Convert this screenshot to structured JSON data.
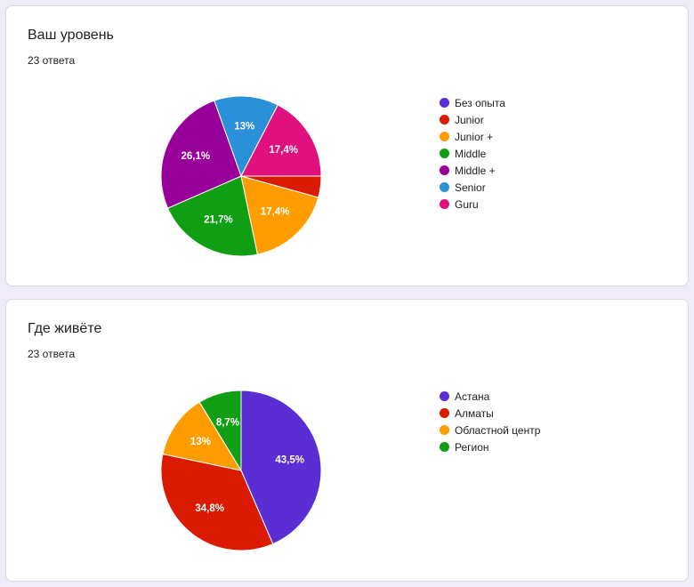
{
  "chart_data": [
    {
      "type": "pie",
      "title": "Ваш уровень",
      "subtitle": "23 ответа",
      "slices": [
        {
          "label": "Без опыта",
          "value": 0,
          "percent_label": "",
          "color": "#5b2ed4"
        },
        {
          "label": "Junior",
          "value": 4.3,
          "percent_label": "",
          "color": "#db1a02"
        },
        {
          "label": "Junior +",
          "value": 17.4,
          "percent_label": "17,4%",
          "color": "#ff9d00"
        },
        {
          "label": "Middle",
          "value": 21.7,
          "percent_label": "21,7%",
          "color": "#0f9e14"
        },
        {
          "label": "Middle +",
          "value": 26.1,
          "percent_label": "26,1%",
          "color": "#990099"
        },
        {
          "label": "Senior",
          "value": 13.0,
          "percent_label": "13%",
          "color": "#2a90d8"
        },
        {
          "label": "Guru",
          "value": 17.4,
          "percent_label": "17,4%",
          "color": "#e0117f"
        }
      ],
      "start_angle_deg": 90,
      "direction": "clockwise",
      "legend_position": "right"
    },
    {
      "type": "pie",
      "title": "Где живёте",
      "subtitle": "23 ответа",
      "slices": [
        {
          "label": "Астана",
          "value": 43.5,
          "percent_label": "43,5%",
          "color": "#5b2ed4"
        },
        {
          "label": "Алматы",
          "value": 34.8,
          "percent_label": "34,8%",
          "color": "#db1a02"
        },
        {
          "label": "Областной центр",
          "value": 13.0,
          "percent_label": "13%",
          "color": "#ff9d00"
        },
        {
          "label": "Регион",
          "value": 8.7,
          "percent_label": "8,7%",
          "color": "#0f9e14"
        }
      ],
      "start_angle_deg": 0,
      "direction": "clockwise",
      "legend_position": "right"
    }
  ]
}
